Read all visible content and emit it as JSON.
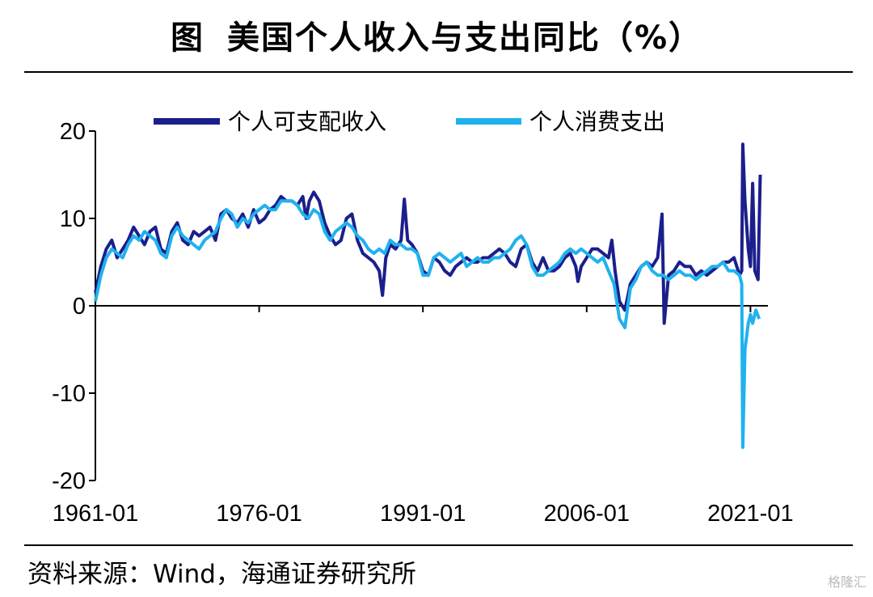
{
  "title": {
    "label": "图",
    "text": "美国个人收入与支出同比（%）"
  },
  "source": "资料来源：Wind，海通证券研究所",
  "watermark": "格隆汇",
  "chart_data": {
    "type": "line",
    "ylim": [
      -20,
      20
    ],
    "yticks": [
      "20",
      "10",
      "0",
      "-10",
      "-20"
    ],
    "ytick_values": [
      20,
      10,
      0,
      -10,
      -20
    ],
    "xticks": [
      "1961-01",
      "1976-01",
      "1991-01",
      "2006-01",
      "2021-01"
    ],
    "xtick_years": [
      1961,
      1976,
      1991,
      2006,
      2021
    ],
    "xlim_years": [
      1961,
      2022.6
    ],
    "legend_position": "top",
    "series": [
      {
        "name": "个人可支配收入",
        "color": "#1b1f8c",
        "points": [
          [
            1961.0,
            1.5
          ],
          [
            1961.5,
            4.5
          ],
          [
            1962.0,
            6.5
          ],
          [
            1962.5,
            7.5
          ],
          [
            1963.0,
            5.5
          ],
          [
            1963.5,
            6.5
          ],
          [
            1964.0,
            7.5
          ],
          [
            1964.5,
            9.0
          ],
          [
            1965.0,
            8.0
          ],
          [
            1965.5,
            7.0
          ],
          [
            1966.0,
            8.5
          ],
          [
            1966.5,
            9.0
          ],
          [
            1967.0,
            6.5
          ],
          [
            1967.5,
            6.0
          ],
          [
            1968.0,
            8.5
          ],
          [
            1968.5,
            9.5
          ],
          [
            1969.0,
            7.5
          ],
          [
            1969.5,
            7.0
          ],
          [
            1970.0,
            8.5
          ],
          [
            1970.5,
            8.0
          ],
          [
            1971.0,
            8.5
          ],
          [
            1971.5,
            9.0
          ],
          [
            1972.0,
            7.5
          ],
          [
            1972.5,
            10.5
          ],
          [
            1973.0,
            11.0
          ],
          [
            1973.5,
            10.0
          ],
          [
            1974.0,
            9.5
          ],
          [
            1974.5,
            10.5
          ],
          [
            1975.0,
            9.0
          ],
          [
            1975.5,
            11.0
          ],
          [
            1976.0,
            9.5
          ],
          [
            1976.5,
            10.0
          ],
          [
            1977.0,
            11.0
          ],
          [
            1977.5,
            11.5
          ],
          [
            1978.0,
            12.5
          ],
          [
            1978.5,
            12.0
          ],
          [
            1979.0,
            12.0
          ],
          [
            1979.5,
            11.5
          ],
          [
            1980.0,
            12.5
          ],
          [
            1980.3,
            10.0
          ],
          [
            1980.6,
            12.0
          ],
          [
            1981.0,
            13.0
          ],
          [
            1981.5,
            12.0
          ],
          [
            1982.0,
            9.5
          ],
          [
            1982.5,
            8.0
          ],
          [
            1983.0,
            7.0
          ],
          [
            1983.5,
            7.5
          ],
          [
            1984.0,
            10.0
          ],
          [
            1984.5,
            10.5
          ],
          [
            1985.0,
            7.5
          ],
          [
            1985.5,
            6.0
          ],
          [
            1986.0,
            5.5
          ],
          [
            1986.5,
            5.0
          ],
          [
            1987.0,
            4.0
          ],
          [
            1987.3,
            1.2
          ],
          [
            1987.6,
            5.5
          ],
          [
            1988.0,
            7.0
          ],
          [
            1988.5,
            6.5
          ],
          [
            1989.0,
            7.5
          ],
          [
            1989.3,
            12.2
          ],
          [
            1989.6,
            7.5
          ],
          [
            1990.0,
            7.0
          ],
          [
            1990.5,
            6.0
          ],
          [
            1991.0,
            4.0
          ],
          [
            1991.5,
            3.5
          ],
          [
            1992.0,
            5.5
          ],
          [
            1992.5,
            5.0
          ],
          [
            1993.0,
            4.0
          ],
          [
            1993.5,
            3.5
          ],
          [
            1994.0,
            4.5
          ],
          [
            1994.5,
            5.0
          ],
          [
            1995.0,
            5.5
          ],
          [
            1995.5,
            5.0
          ],
          [
            1996.0,
            5.0
          ],
          [
            1996.5,
            5.5
          ],
          [
            1997.0,
            5.5
          ],
          [
            1997.5,
            6.0
          ],
          [
            1998.0,
            6.5
          ],
          [
            1998.5,
            6.0
          ],
          [
            1999.0,
            5.0
          ],
          [
            1999.5,
            4.5
          ],
          [
            2000.0,
            6.5
          ],
          [
            2000.5,
            7.0
          ],
          [
            2001.0,
            5.0
          ],
          [
            2001.5,
            4.0
          ],
          [
            2002.0,
            5.5
          ],
          [
            2002.5,
            4.0
          ],
          [
            2003.0,
            4.0
          ],
          [
            2003.5,
            4.5
          ],
          [
            2004.0,
            5.5
          ],
          [
            2004.5,
            6.0
          ],
          [
            2005.0,
            4.5
          ],
          [
            2005.2,
            2.8
          ],
          [
            2005.5,
            4.5
          ],
          [
            2006.0,
            5.5
          ],
          [
            2006.5,
            6.5
          ],
          [
            2007.0,
            6.5
          ],
          [
            2007.5,
            6.0
          ],
          [
            2008.0,
            5.5
          ],
          [
            2008.3,
            7.5
          ],
          [
            2008.6,
            4.0
          ],
          [
            2009.0,
            0.5
          ],
          [
            2009.5,
            -0.5
          ],
          [
            2010.0,
            2.5
          ],
          [
            2010.5,
            3.5
          ],
          [
            2011.0,
            4.5
          ],
          [
            2011.5,
            5.0
          ],
          [
            2012.0,
            4.5
          ],
          [
            2012.5,
            5.5
          ],
          [
            2012.9,
            10.5
          ],
          [
            2013.1,
            -2.0
          ],
          [
            2013.5,
            3.5
          ],
          [
            2014.0,
            4.0
          ],
          [
            2014.5,
            5.0
          ],
          [
            2015.0,
            4.5
          ],
          [
            2015.5,
            4.5
          ],
          [
            2016.0,
            3.5
          ],
          [
            2016.5,
            4.0
          ],
          [
            2017.0,
            3.5
          ],
          [
            2017.5,
            4.0
          ],
          [
            2018.0,
            4.5
          ],
          [
            2018.5,
            5.0
          ],
          [
            2019.0,
            5.0
          ],
          [
            2019.5,
            5.5
          ],
          [
            2020.0,
            3.5
          ],
          [
            2020.2,
            4.0
          ],
          [
            2020.3,
            18.5
          ],
          [
            2020.5,
            12.0
          ],
          [
            2020.8,
            6.5
          ],
          [
            2021.0,
            4.5
          ],
          [
            2021.2,
            14.0
          ],
          [
            2021.4,
            4.0
          ],
          [
            2021.7,
            3.0
          ],
          [
            2021.9,
            15.0
          ]
        ]
      },
      {
        "name": "个人消费支出",
        "color": "#1fb2ee",
        "points": [
          [
            1961.0,
            0.5
          ],
          [
            1961.5,
            3.5
          ],
          [
            1962.0,
            5.5
          ],
          [
            1962.5,
            6.5
          ],
          [
            1963.0,
            6.0
          ],
          [
            1963.5,
            5.5
          ],
          [
            1964.0,
            7.0
          ],
          [
            1964.5,
            8.0
          ],
          [
            1965.0,
            7.5
          ],
          [
            1965.5,
            8.5
          ],
          [
            1966.0,
            8.0
          ],
          [
            1966.5,
            7.5
          ],
          [
            1967.0,
            6.0
          ],
          [
            1967.5,
            5.5
          ],
          [
            1968.0,
            8.0
          ],
          [
            1968.5,
            9.0
          ],
          [
            1969.0,
            8.0
          ],
          [
            1969.5,
            7.5
          ],
          [
            1970.0,
            7.0
          ],
          [
            1970.5,
            6.5
          ],
          [
            1971.0,
            7.5
          ],
          [
            1971.5,
            8.0
          ],
          [
            1972.0,
            8.5
          ],
          [
            1972.5,
            10.0
          ],
          [
            1973.0,
            11.0
          ],
          [
            1973.5,
            10.5
          ],
          [
            1974.0,
            9.0
          ],
          [
            1974.5,
            10.0
          ],
          [
            1975.0,
            9.5
          ],
          [
            1975.5,
            10.5
          ],
          [
            1976.0,
            11.0
          ],
          [
            1976.5,
            11.5
          ],
          [
            1977.0,
            11.0
          ],
          [
            1977.5,
            11.0
          ],
          [
            1978.0,
            12.0
          ],
          [
            1978.5,
            12.0
          ],
          [
            1979.0,
            12.0
          ],
          [
            1979.5,
            11.5
          ],
          [
            1980.0,
            10.5
          ],
          [
            1980.5,
            10.0
          ],
          [
            1981.0,
            11.0
          ],
          [
            1981.5,
            10.5
          ],
          [
            1982.0,
            8.5
          ],
          [
            1982.5,
            7.5
          ],
          [
            1983.0,
            8.5
          ],
          [
            1983.5,
            9.0
          ],
          [
            1984.0,
            9.5
          ],
          [
            1984.5,
            9.0
          ],
          [
            1985.0,
            8.0
          ],
          [
            1985.5,
            7.5
          ],
          [
            1986.0,
            6.5
          ],
          [
            1986.5,
            6.0
          ],
          [
            1987.0,
            6.5
          ],
          [
            1987.5,
            6.0
          ],
          [
            1988.0,
            7.5
          ],
          [
            1988.5,
            7.0
          ],
          [
            1989.0,
            7.0
          ],
          [
            1989.5,
            6.5
          ],
          [
            1990.0,
            6.5
          ],
          [
            1990.5,
            6.0
          ],
          [
            1991.0,
            3.5
          ],
          [
            1991.5,
            3.5
          ],
          [
            1992.0,
            5.5
          ],
          [
            1992.5,
            6.0
          ],
          [
            1993.0,
            5.5
          ],
          [
            1993.5,
            5.0
          ],
          [
            1994.0,
            5.5
          ],
          [
            1994.5,
            6.0
          ],
          [
            1995.0,
            4.5
          ],
          [
            1995.5,
            5.0
          ],
          [
            1996.0,
            5.5
          ],
          [
            1996.5,
            5.0
          ],
          [
            1997.0,
            5.0
          ],
          [
            1997.5,
            5.5
          ],
          [
            1998.0,
            5.5
          ],
          [
            1998.5,
            6.0
          ],
          [
            1999.0,
            6.5
          ],
          [
            1999.5,
            7.5
          ],
          [
            2000.0,
            8.0
          ],
          [
            2000.5,
            7.0
          ],
          [
            2001.0,
            4.5
          ],
          [
            2001.5,
            3.5
          ],
          [
            2002.0,
            3.5
          ],
          [
            2002.5,
            4.0
          ],
          [
            2003.0,
            4.5
          ],
          [
            2003.5,
            5.0
          ],
          [
            2004.0,
            6.0
          ],
          [
            2004.5,
            6.5
          ],
          [
            2005.0,
            6.0
          ],
          [
            2005.5,
            6.5
          ],
          [
            2006.0,
            6.0
          ],
          [
            2006.5,
            5.5
          ],
          [
            2007.0,
            5.0
          ],
          [
            2007.5,
            5.5
          ],
          [
            2008.0,
            4.0
          ],
          [
            2008.5,
            2.5
          ],
          [
            2009.0,
            -1.5
          ],
          [
            2009.5,
            -2.5
          ],
          [
            2010.0,
            2.0
          ],
          [
            2010.5,
            3.0
          ],
          [
            2011.0,
            4.5
          ],
          [
            2011.5,
            5.0
          ],
          [
            2012.0,
            4.0
          ],
          [
            2012.5,
            3.5
          ],
          [
            2013.0,
            3.5
          ],
          [
            2013.5,
            3.0
          ],
          [
            2014.0,
            3.5
          ],
          [
            2014.5,
            4.0
          ],
          [
            2015.0,
            3.5
          ],
          [
            2015.5,
            3.5
          ],
          [
            2016.0,
            3.0
          ],
          [
            2016.5,
            3.5
          ],
          [
            2017.0,
            4.0
          ],
          [
            2017.5,
            4.5
          ],
          [
            2018.0,
            4.5
          ],
          [
            2018.5,
            5.0
          ],
          [
            2019.0,
            4.0
          ],
          [
            2019.5,
            4.0
          ],
          [
            2020.0,
            3.5
          ],
          [
            2020.2,
            2.5
          ],
          [
            2020.3,
            -16.2
          ],
          [
            2020.5,
            -5.0
          ],
          [
            2020.8,
            -2.0
          ],
          [
            2021.0,
            -1.0
          ],
          [
            2021.2,
            -2.0
          ],
          [
            2021.5,
            -0.5
          ],
          [
            2021.8,
            -1.5
          ]
        ]
      }
    ]
  }
}
